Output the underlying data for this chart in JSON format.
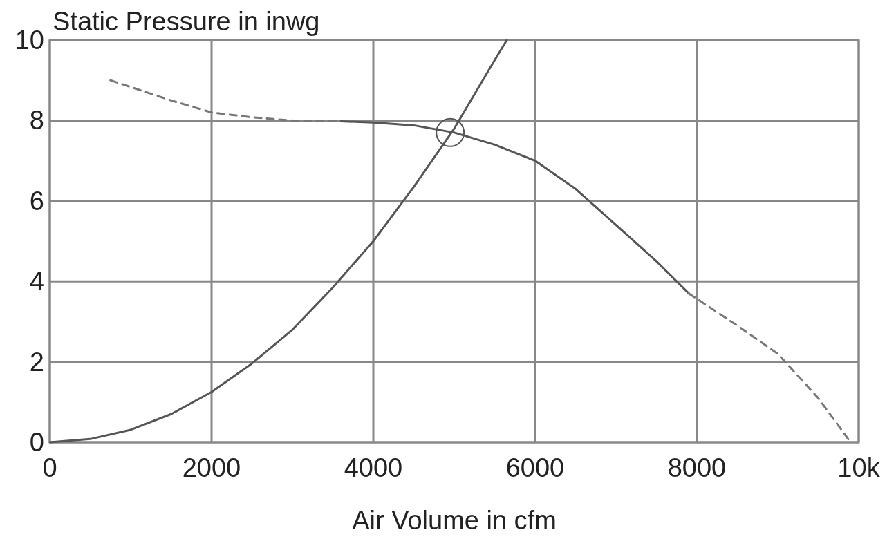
{
  "chart_data": {
    "type": "line",
    "xlabel": "Air Volume in cfm",
    "ylabel": "Static Pressure in inwg",
    "xlim": [
      0,
      10000
    ],
    "ylim": [
      0,
      10
    ],
    "xticks": [
      0,
      2000,
      4000,
      6000,
      8000,
      {
        "value": 10000,
        "label": "10k"
      }
    ],
    "yticks": [
      0,
      2,
      4,
      6,
      8,
      10
    ],
    "grid": true,
    "series": [
      {
        "color": "#555555",
        "line_style": "solid",
        "x": [
          0,
          500,
          1000,
          1500,
          2000,
          2500,
          3000,
          3500,
          4000,
          4500,
          5000,
          5500,
          5650
        ],
        "values": [
          0,
          0.08,
          0.31,
          0.7,
          1.25,
          1.96,
          2.8,
          3.85,
          5.0,
          6.35,
          7.8,
          9.5,
          10
        ]
      },
      {
        "color": "#777777",
        "line_style": "dashed",
        "x": [
          750,
          1500,
          2000,
          2500,
          3000,
          3600
        ],
        "values": [
          9.0,
          8.5,
          8.2,
          8.08,
          8.0,
          7.98
        ]
      },
      {
        "color": "#555555",
        "line_style": "solid",
        "x": [
          3600,
          4000,
          4500,
          5000,
          5500,
          6000,
          6500,
          7000,
          7500,
          7900
        ],
        "values": [
          7.98,
          7.95,
          7.88,
          7.7,
          7.4,
          7.0,
          6.3,
          5.4,
          4.5,
          3.7
        ]
      },
      {
        "color": "#777777",
        "line_style": "dashed",
        "x": [
          7900,
          8500,
          9000,
          9500,
          9900
        ],
        "values": [
          3.7,
          2.9,
          2.2,
          1.1,
          0
        ]
      },
      {
        "type": "scatter",
        "color": "#555555",
        "marker": "circle",
        "x": [
          4950
        ],
        "values": [
          7.7
        ]
      }
    ]
  }
}
